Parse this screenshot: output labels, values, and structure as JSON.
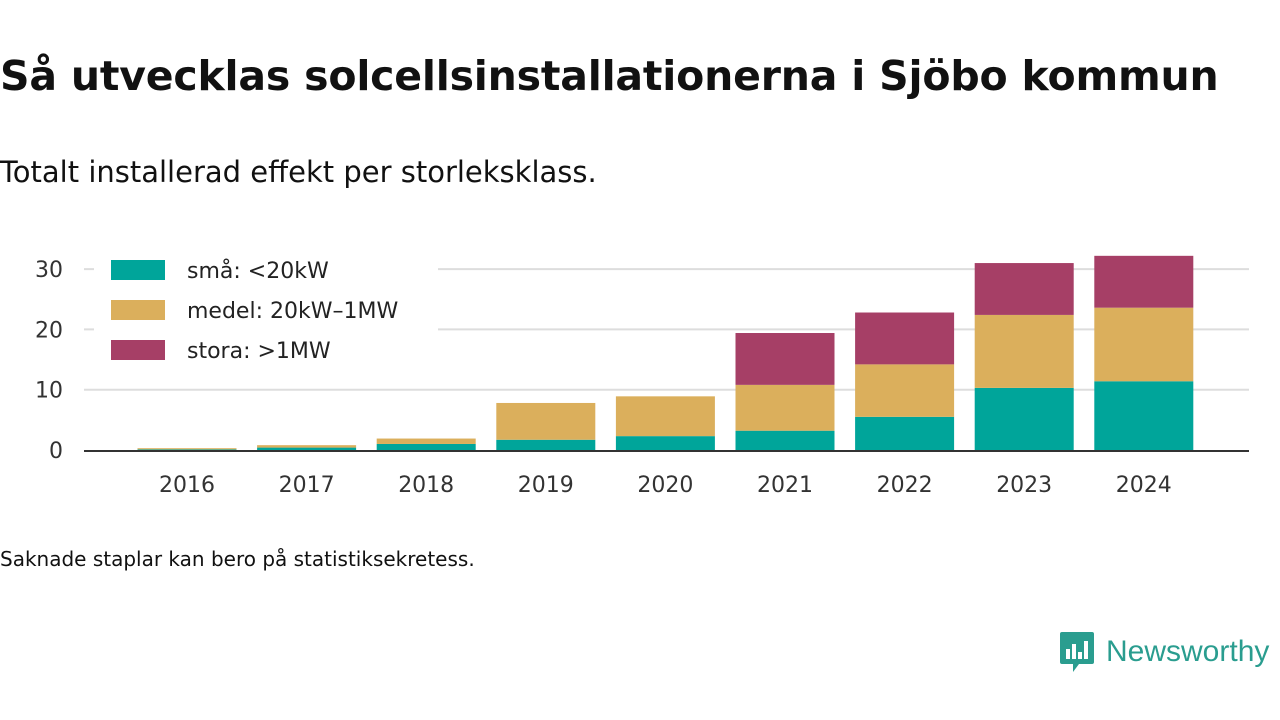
{
  "header": {
    "title": "Så utvecklas solcellsinstallationerna i Sjöbo kommun",
    "subtitle": "Totalt installerad effekt per storleksklass."
  },
  "footer": {
    "note": "Saknade staplar kan bero på statistiksekretess.",
    "brand": "Newsworthy",
    "brand_icon": "newsworthy-chart-icon",
    "brand_color": "#2a9d8f"
  },
  "chart_data": {
    "type": "bar",
    "stacked": true,
    "categories": [
      "2016",
      "2017",
      "2018",
      "2019",
      "2020",
      "2021",
      "2022",
      "2023",
      "2024"
    ],
    "series": [
      {
        "name": "små: <20kW",
        "color": "#00a59a",
        "values": [
          0.1,
          0.4,
          1.0,
          1.7,
          2.3,
          3.2,
          5.5,
          10.3,
          11.4
        ]
      },
      {
        "name": "medel: 20kW–1MW",
        "color": "#dbaf5c",
        "values": [
          0.2,
          0.4,
          0.9,
          6.1,
          6.6,
          7.6,
          8.7,
          12.1,
          12.2
        ]
      },
      {
        "name": "stora: >1MW",
        "color": "#a63f66",
        "values": [
          0,
          0,
          0,
          0,
          0,
          8.6,
          8.6,
          8.6,
          8.6
        ]
      }
    ],
    "yticks": [
      0,
      10,
      20,
      30
    ],
    "ylim": [
      0,
      33
    ],
    "xlabel": "",
    "ylabel": "",
    "grid": true,
    "legend_position": "top-left"
  }
}
